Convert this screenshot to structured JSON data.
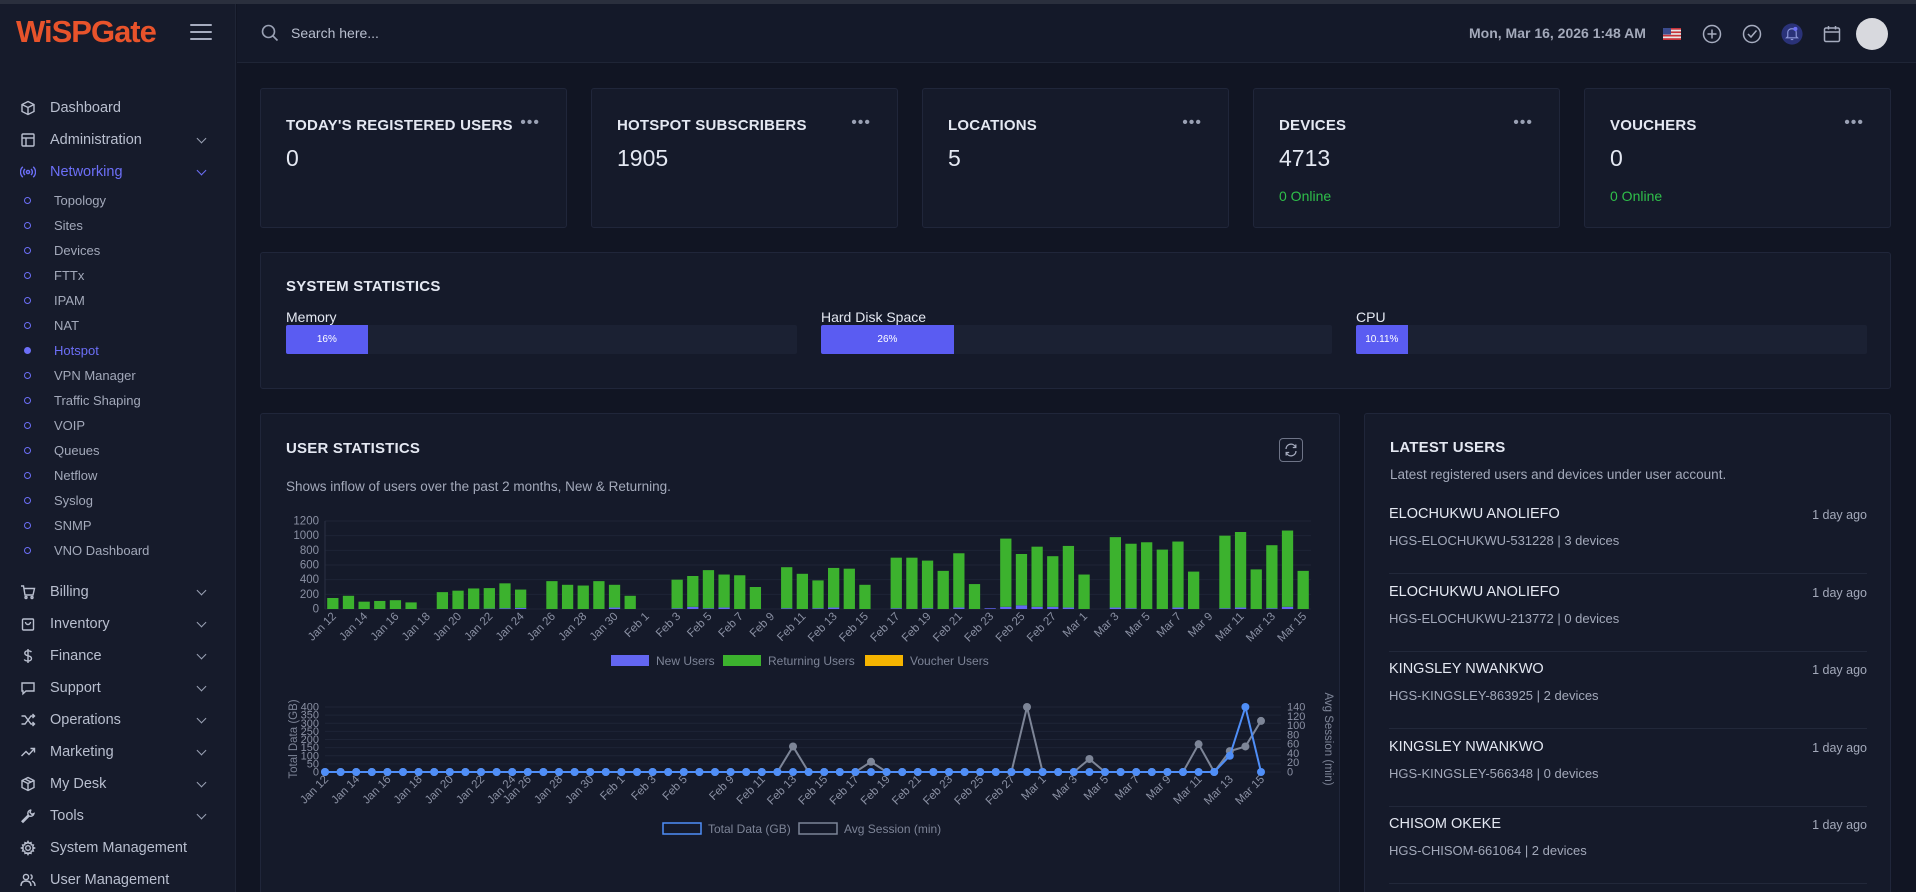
{
  "brand": {
    "logo_text": "WiSPGate"
  },
  "header": {
    "search_placeholder": "Search here...",
    "datetime": "Mon, Mar 16, 2026 1:48 AM",
    "icons": [
      "flag-icon",
      "plus-circle-icon",
      "check-circle-icon",
      "bell-icon",
      "calendar-icon"
    ]
  },
  "sidebar": {
    "items_top": [
      {
        "label": "Dashboard",
        "icon": "cube-icon",
        "chevron": false
      },
      {
        "label": "Administration",
        "icon": "table-icon",
        "chevron": true
      },
      {
        "label": "Networking",
        "icon": "broadcast-icon",
        "chevron": true,
        "active": true
      }
    ],
    "networking_sub": [
      "Topology",
      "Sites",
      "Devices",
      "FTTx",
      "IPAM",
      "NAT",
      "Hotspot",
      "VPN Manager",
      "Traffic Shaping",
      "VOIP",
      "Queues",
      "Netflow",
      "Syslog",
      "SNMP",
      "VNO Dashboard"
    ],
    "active_sub": "Hotspot",
    "items_bottom": [
      {
        "label": "Billing",
        "icon": "cart-icon",
        "chevron": true
      },
      {
        "label": "Inventory",
        "icon": "bag-icon",
        "chevron": true
      },
      {
        "label": "Finance",
        "icon": "dollar-icon",
        "chevron": true
      },
      {
        "label": "Support",
        "icon": "chat-icon",
        "chevron": true
      },
      {
        "label": "Operations",
        "icon": "shuffle-icon",
        "chevron": true
      },
      {
        "label": "Marketing",
        "icon": "trend-icon",
        "chevron": true
      },
      {
        "label": "My Desk",
        "icon": "box-icon",
        "chevron": true
      },
      {
        "label": "Tools",
        "icon": "wrench-icon",
        "chevron": true
      },
      {
        "label": "System Management",
        "icon": "gear-icon",
        "chevron": false
      },
      {
        "label": "User Management",
        "icon": "users-icon",
        "chevron": false
      }
    ]
  },
  "kpis": [
    {
      "title": "TODAY'S REGISTERED USERS",
      "value": "0",
      "sub": ""
    },
    {
      "title": "HOTSPOT SUBSCRIBERS",
      "value": "1905",
      "sub": ""
    },
    {
      "title": "LOCATIONS",
      "value": "5",
      "sub": ""
    },
    {
      "title": "DEVICES",
      "value": "4713",
      "sub": "0 Online"
    },
    {
      "title": "VOUCHERS",
      "value": "0",
      "sub": "0 Online"
    }
  ],
  "system_stats": {
    "title": "SYSTEM STATISTICS",
    "items": [
      {
        "label": "Memory",
        "text": "16%",
        "pct": 16
      },
      {
        "label": "Hard Disk Space",
        "text": "26%",
        "pct": 26
      },
      {
        "label": "CPU",
        "text": "10.11%",
        "pct": 10.11
      }
    ]
  },
  "user_stats": {
    "title": "USER STATISTICS",
    "subtitle": "Shows inflow of users over the past 2 months, New & Returning."
  },
  "latest_users": {
    "title": "LATEST USERS",
    "subtitle": "Latest registered users and devices under user account.",
    "rows": [
      {
        "name": "ELOCHUKWU ANOLIEFO",
        "time": "1 day ago",
        "detail": "HGS-ELOCHUKWU-531228 | 3 devices"
      },
      {
        "name": "ELOCHUKWU ANOLIEFO",
        "time": "1 day ago",
        "detail": "HGS-ELOCHUKWU-213772 | 0 devices"
      },
      {
        "name": "KINGSLEY NWANKWO",
        "time": "1 day ago",
        "detail": "HGS-KINGSLEY-863925 | 2 devices"
      },
      {
        "name": "KINGSLEY NWANKWO",
        "time": "1 day ago",
        "detail": "HGS-KINGSLEY-566348 | 0 devices"
      },
      {
        "name": "CHISOM OKEKE",
        "time": "1 day ago",
        "detail": "HGS-CHISOM-661064 | 2 devices"
      }
    ]
  },
  "colors": {
    "accent": "#5a5cf2",
    "new_users": "#6366f1",
    "returning_users": "#3cb22e",
    "voucher_users": "#f5b400",
    "total_data": "#4f8ef7",
    "avg_session": "#7d8597",
    "online": "#2fbf4a"
  },
  "chart_data": [
    {
      "type": "bar",
      "stacked": true,
      "categories": [
        "Jan 12",
        "Jan 13",
        "Jan 14",
        "Jan 15",
        "Jan 16",
        "Jan 17",
        "Jan 18",
        "Jan 19",
        "Jan 20",
        "Jan 21",
        "Jan 22",
        "Jan 23",
        "Jan 24",
        "Jan 25",
        "Jan 26",
        "Jan 27",
        "Jan 28",
        "Jan 29",
        "Jan 30",
        "Jan 31",
        "Feb 1",
        "Feb 2",
        "Feb 3",
        "Feb 4",
        "Feb 5",
        "Feb 6",
        "Feb 7",
        "Feb 8",
        "Feb 9",
        "Feb 10",
        "Feb 11",
        "Feb 12",
        "Feb 13",
        "Feb 14",
        "Feb 15",
        "Feb 16",
        "Feb 17",
        "Feb 18",
        "Feb 19",
        "Feb 20",
        "Feb 21",
        "Feb 22",
        "Feb 23",
        "Feb 24",
        "Feb 25",
        "Feb 26",
        "Feb 27",
        "Feb 28",
        "Mar 1",
        "Mar 2",
        "Mar 3",
        "Mar 4",
        "Mar 5",
        "Mar 6",
        "Mar 7",
        "Mar 8",
        "Mar 9",
        "Mar 10",
        "Mar 11",
        "Mar 12",
        "Mar 13",
        "Mar 14",
        "Mar 15"
      ],
      "xticks": [
        "Jan 12",
        "Jan 14",
        "Jan 16",
        "Jan 18",
        "Jan 20",
        "Jan 22",
        "Jan 24",
        "Jan 26",
        "Jan 28",
        "Jan 30",
        "Feb 1",
        "Feb 3",
        "Feb 5",
        "Feb 7",
        "Feb 9",
        "Feb 11",
        "Feb 13",
        "Feb 15",
        "Feb 17",
        "Feb 19",
        "Feb 21",
        "Feb 23",
        "Feb 25",
        "Feb 27",
        "Mar 1",
        "Mar 3",
        "Mar 5",
        "Mar 7",
        "Mar 9",
        "Mar 11",
        "Mar 13",
        "Mar 15"
      ],
      "series": [
        {
          "name": "New Users",
          "values": [
            0,
            0,
            0,
            0,
            0,
            0,
            0,
            0,
            0,
            0,
            5,
            10,
            15,
            0,
            0,
            0,
            0,
            0,
            20,
            0,
            0,
            0,
            10,
            30,
            10,
            20,
            0,
            0,
            0,
            10,
            0,
            10,
            20,
            0,
            0,
            0,
            10,
            0,
            10,
            0,
            20,
            0,
            10,
            30,
            50,
            30,
            30,
            20,
            0,
            0,
            20,
            10,
            0,
            0,
            20,
            0,
            0,
            10,
            20,
            0,
            10,
            30,
            0
          ]
        },
        {
          "name": "Returning Users",
          "values": [
            150,
            180,
            100,
            110,
            120,
            90,
            0,
            230,
            250,
            280,
            280,
            340,
            250,
            0,
            380,
            330,
            320,
            380,
            310,
            180,
            0,
            0,
            390,
            420,
            520,
            450,
            460,
            300,
            0,
            560,
            480,
            380,
            540,
            550,
            330,
            0,
            690,
            700,
            650,
            520,
            740,
            340,
            0,
            930,
            700,
            820,
            690,
            840,
            470,
            0,
            960,
            880,
            910,
            810,
            900,
            510,
            0,
            990,
            1030,
            540,
            860,
            1040,
            520
          ]
        },
        {
          "name": "Voucher Users",
          "values": [
            0,
            0,
            0,
            0,
            0,
            0,
            0,
            0,
            0,
            0,
            0,
            0,
            0,
            0,
            0,
            0,
            0,
            0,
            0,
            0,
            0,
            0,
            0,
            0,
            0,
            0,
            0,
            0,
            0,
            0,
            0,
            0,
            0,
            0,
            0,
            0,
            0,
            0,
            0,
            0,
            0,
            0,
            0,
            0,
            0,
            0,
            0,
            0,
            0,
            0,
            0,
            0,
            0,
            0,
            0,
            0,
            0,
            0,
            0,
            0,
            0,
            0,
            0
          ]
        }
      ],
      "yticks": [
        0,
        200,
        400,
        600,
        800,
        1000,
        1200
      ],
      "ylim": [
        0,
        1200
      ],
      "legend": "bottom"
    },
    {
      "type": "line",
      "categories": [
        "Jan 12",
        "Jan 13",
        "Jan 14",
        "Jan 15",
        "Jan 16",
        "Jan 17",
        "Jan 18",
        "Jan 19",
        "Jan 20",
        "Jan 21",
        "Jan 22",
        "Jan 23",
        "Jan 24",
        "Jan 26",
        "Jan 27",
        "Jan 28",
        "Jan 29",
        "Jan 30",
        "Jan 31",
        "Feb 1",
        "Feb 2",
        "Feb 3",
        "Feb 4",
        "Feb 5",
        "Feb 6",
        "Feb 8",
        "Feb 9",
        "Feb 10",
        "Feb 11",
        "Feb 12",
        "Feb 13",
        "Feb 14",
        "Feb 15",
        "Feb 16",
        "Feb 17",
        "Feb 18",
        "Feb 19",
        "Feb 20",
        "Feb 21",
        "Feb 22",
        "Feb 23",
        "Feb 24",
        "Feb 25",
        "Feb 26",
        "Feb 27",
        "Feb 28",
        "Mar 1",
        "Mar 2",
        "Mar 3",
        "Mar 4",
        "Mar 5",
        "Mar 6",
        "Mar 7",
        "Mar 8",
        "Mar 9",
        "Mar 10",
        "Mar 11",
        "Mar 12",
        "Mar 13",
        "Mar 14",
        "Mar 15"
      ],
      "xticks": [
        "Jan 12",
        "Jan 14",
        "Jan 16",
        "Jan 18",
        "Jan 20",
        "Jan 22",
        "Jan 24",
        "Jan 26",
        "Jan 28",
        "Jan 30",
        "Feb 1",
        "Feb 3",
        "Feb 5",
        "Feb 7",
        "Feb 9",
        "Feb 11",
        "Feb 13",
        "Feb 15",
        "Feb 17",
        "Feb 19",
        "Feb 21",
        "Feb 23",
        "Feb 25",
        "Feb 27",
        "Mar 1",
        "Mar 3",
        "Mar 5",
        "Mar 7",
        "Mar 9",
        "Mar 11",
        "Mar 13",
        "Mar 15"
      ],
      "series": [
        {
          "name": "Total Data (GB)",
          "axis": "left",
          "values": [
            0,
            0,
            0,
            0,
            0,
            0,
            0,
            0,
            0,
            0,
            0,
            0,
            0,
            0,
            0,
            0,
            0,
            0,
            0,
            0,
            0,
            0,
            0,
            0,
            0,
            0,
            0,
            0,
            0,
            0,
            0,
            0,
            0,
            0,
            0,
            0,
            0,
            0,
            0,
            0,
            0,
            0,
            0,
            0,
            0,
            0,
            0,
            0,
            0,
            0,
            0,
            0,
            0,
            0,
            0,
            0,
            0,
            0,
            100,
            400,
            0
          ]
        },
        {
          "name": "Avg Session (min)",
          "axis": "right",
          "values": [
            0,
            0,
            0,
            0,
            0,
            0,
            0,
            0,
            0,
            0,
            0,
            0,
            0,
            0,
            0,
            0,
            0,
            0,
            0,
            0,
            0,
            0,
            0,
            0,
            0,
            0,
            0,
            0,
            0,
            0,
            55,
            0,
            0,
            0,
            0,
            22,
            0,
            0,
            0,
            0,
            0,
            0,
            0,
            0,
            0,
            140,
            0,
            0,
            0,
            28,
            0,
            0,
            0,
            0,
            0,
            0,
            60,
            0,
            45,
            55,
            110
          ]
        }
      ],
      "y_left": {
        "label": "Total Data (GB)",
        "ticks": [
          0,
          50,
          100,
          150,
          200,
          250,
          300,
          350,
          400
        ],
        "lim": [
          0,
          400
        ]
      },
      "y_right": {
        "label": "Avg Session (min)",
        "ticks": [
          0,
          20,
          40,
          60,
          80,
          100,
          120,
          140
        ],
        "lim": [
          0,
          140
        ]
      },
      "legend": "bottom"
    }
  ]
}
